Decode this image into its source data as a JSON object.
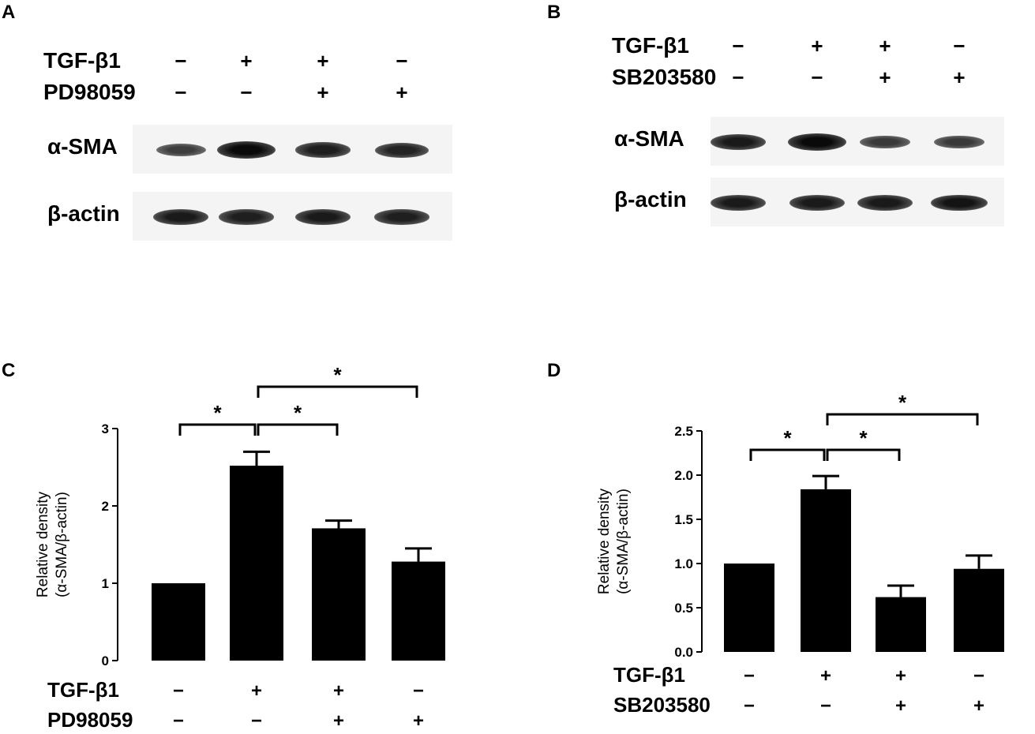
{
  "panels": {
    "A": {
      "letter": "A",
      "rows": [
        {
          "label": "TGF-β1",
          "signs": [
            "−",
            "+",
            "+",
            "−"
          ]
        },
        {
          "label": "PD98059",
          "signs": [
            "−",
            "−",
            "+",
            "+"
          ]
        }
      ],
      "bands": [
        {
          "label": "α-SMA",
          "intensity": [
            0.5,
            1.0,
            0.8,
            0.75
          ]
        },
        {
          "label": "β-actin",
          "intensity": [
            0.85,
            0.8,
            0.85,
            0.8
          ]
        }
      ]
    },
    "B": {
      "letter": "B",
      "rows": [
        {
          "label": "TGF-β1",
          "signs": [
            "−",
            "+",
            "+",
            "−"
          ]
        },
        {
          "label": "SB203580",
          "signs": [
            "−",
            "−",
            "+",
            "+"
          ]
        }
      ],
      "bands": [
        {
          "label": "α-SMA",
          "intensity": [
            0.85,
            1.0,
            0.55,
            0.55
          ]
        },
        {
          "label": "β-actin",
          "intensity": [
            0.85,
            0.85,
            0.85,
            0.9
          ]
        }
      ]
    },
    "C": {
      "letter": "C",
      "rows": [
        {
          "label": "TGF-β1",
          "signs": [
            "−",
            "+",
            "+",
            "−"
          ]
        },
        {
          "label": "PD98059",
          "signs": [
            "−",
            "−",
            "+",
            "+"
          ]
        }
      ]
    },
    "D": {
      "letter": "D",
      "rows": [
        {
          "label": "TGF-β1",
          "signs": [
            "−",
            "+",
            "+",
            "−"
          ]
        },
        {
          "label": "SB203580",
          "signs": [
            "−",
            "−",
            "+",
            "+"
          ]
        }
      ]
    }
  },
  "chart_data": [
    {
      "panel": "C",
      "type": "bar",
      "ylabel": "Relative density\n(α-SMA/β-actin)",
      "ylabel_lines": [
        "Relative density",
        "(α-SMA/β-actin)"
      ],
      "ylim": [
        0,
        3
      ],
      "yticks": [
        0,
        1,
        2,
        3
      ],
      "ytick_labels": [
        "0",
        "1",
        "2",
        "3"
      ],
      "values": [
        1.0,
        2.52,
        1.71,
        1.28
      ],
      "errors": [
        0,
        0.18,
        0.1,
        0.17
      ],
      "color": "#000000",
      "significance": [
        {
          "from": 0,
          "to": 1,
          "label": "*"
        },
        {
          "from": 1,
          "to": 2,
          "label": "*"
        },
        {
          "from": 1,
          "to": 3,
          "label": "*"
        }
      ]
    },
    {
      "panel": "D",
      "type": "bar",
      "ylabel": "Relative density\n(α-SMA/β-actin)",
      "ylabel_lines": [
        "Relative density",
        "(α-SMA/β-actin)"
      ],
      "ylim": [
        0,
        2.5
      ],
      "yticks": [
        0,
        0.5,
        1.0,
        1.5,
        2.0,
        2.5
      ],
      "ytick_labels": [
        "0.0",
        "0.5",
        "1.0",
        "1.5",
        "2.0",
        "2.5"
      ],
      "values": [
        1.0,
        1.84,
        0.62,
        0.94
      ],
      "errors": [
        0,
        0.15,
        0.13,
        0.15
      ],
      "color": "#000000",
      "significance": [
        {
          "from": 0,
          "to": 1,
          "label": "*"
        },
        {
          "from": 1,
          "to": 2,
          "label": "*"
        },
        {
          "from": 1,
          "to": 3,
          "label": "*"
        }
      ]
    }
  ]
}
